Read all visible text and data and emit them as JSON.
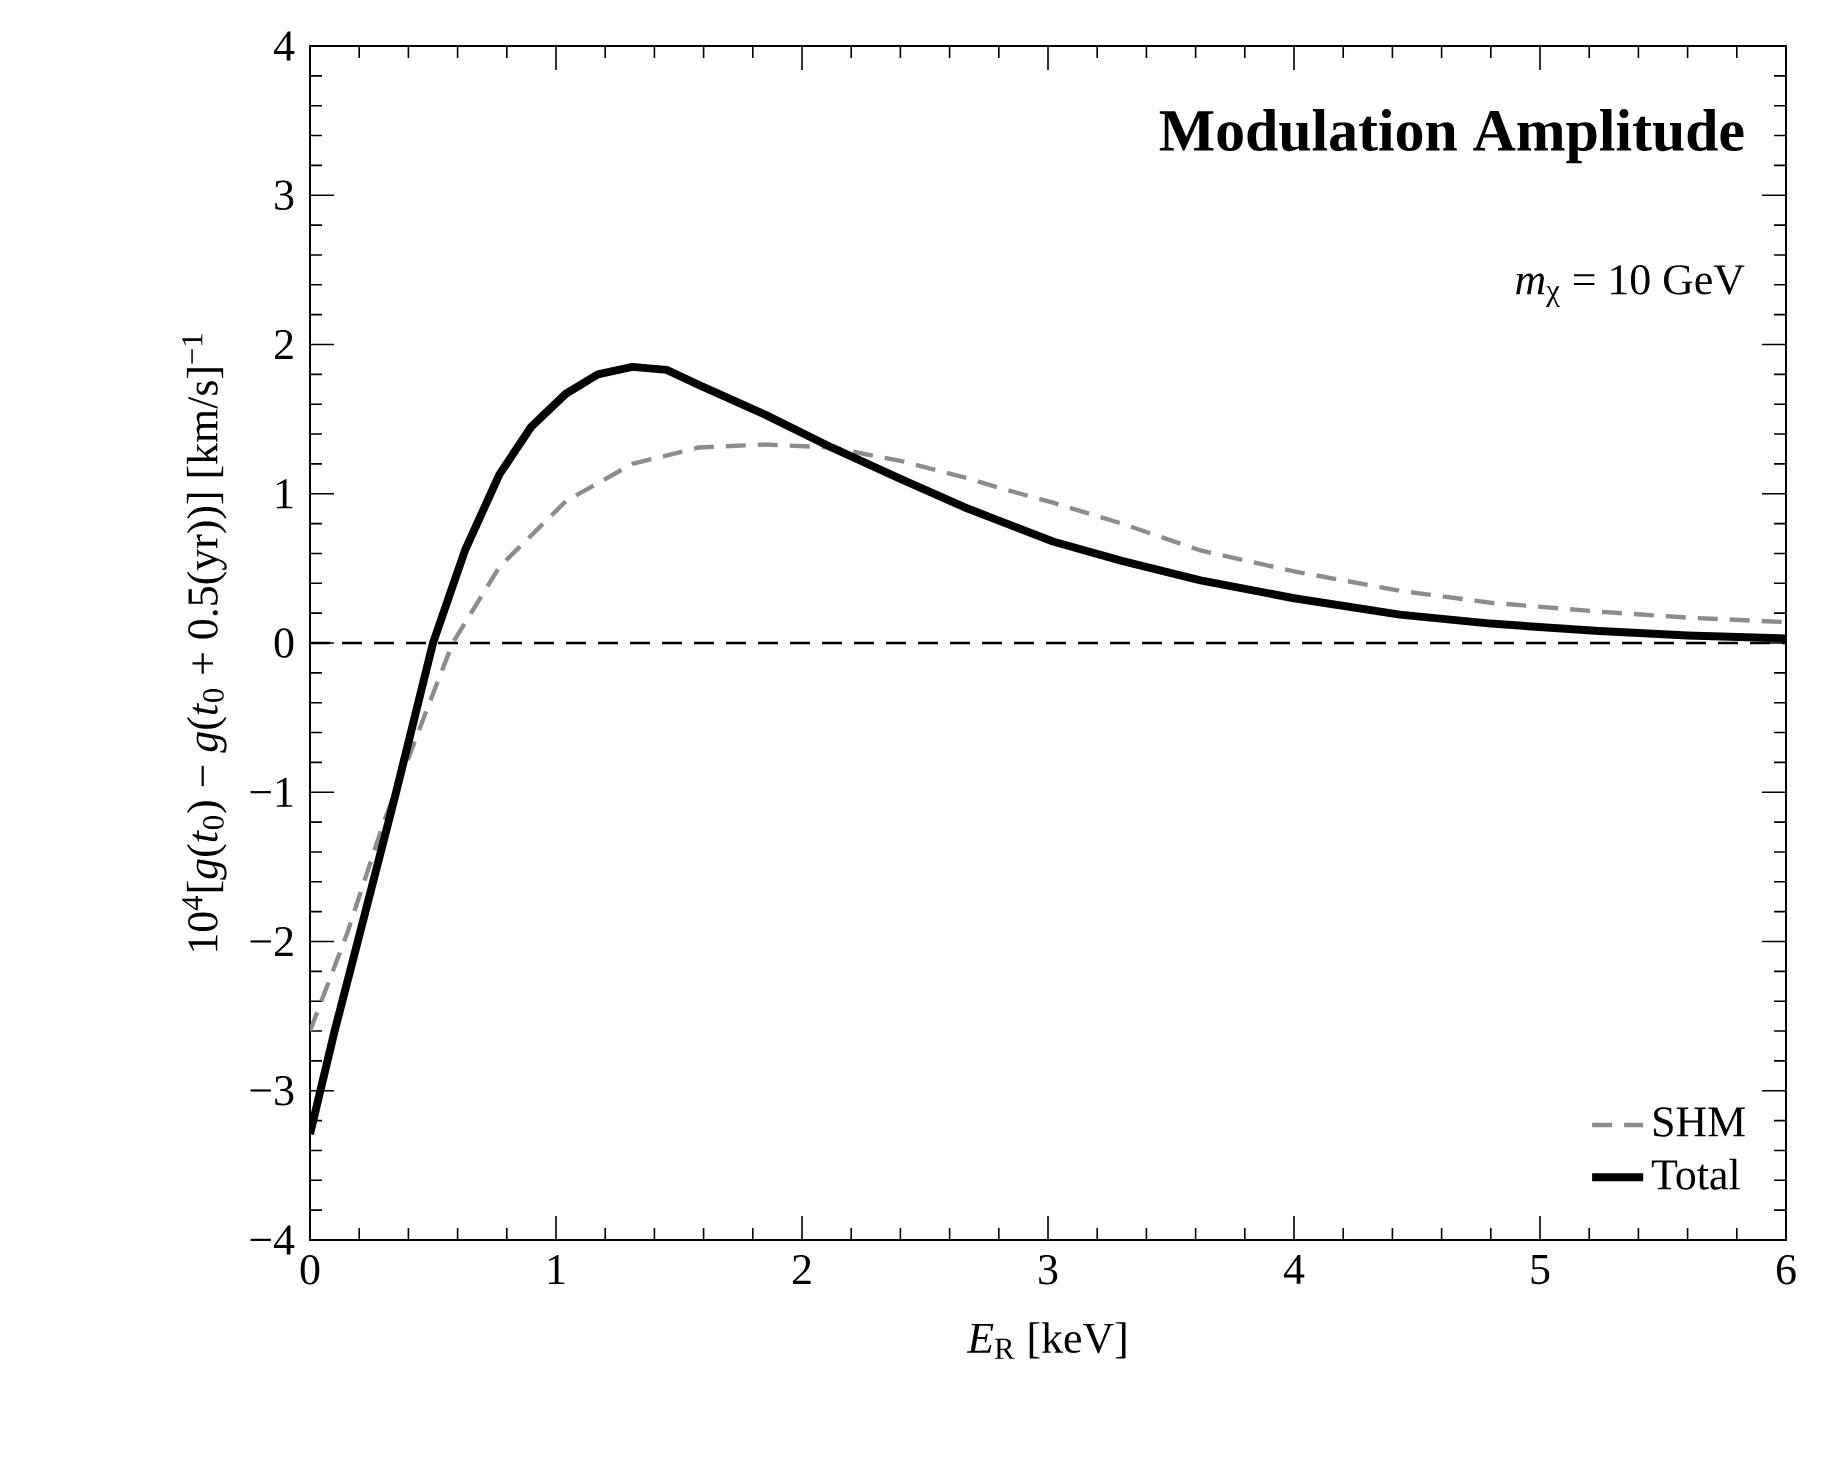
{
  "chart_data": {
    "type": "line",
    "title": "Modulation Amplitude",
    "xlabel": "*E*$_{R}$ [keV]",
    "ylabel": "10$^{4}$[*g*(*t*$_{0}$) − *g*(*t*$_{0}$ + 0.5(yr))] [km/s]$^{−1}$",
    "annotations": [
      "*m*$_{χ}$ = 10 GeV"
    ],
    "xlim": [
      0,
      6
    ],
    "ylim": [
      -4,
      4
    ],
    "xticks": [
      0,
      1,
      2,
      3,
      4,
      5,
      6
    ],
    "yticks": [
      {
        "value": -4,
        "label": "−4"
      },
      {
        "value": -3,
        "label": "−3"
      },
      {
        "value": -2,
        "label": "−2"
      },
      {
        "value": -1,
        "label": "−1"
      },
      0,
      1,
      2,
      3,
      4
    ],
    "ref_lines": [
      {
        "axis": "y",
        "value": 0,
        "color": "#000000",
        "line_style": "dashed"
      }
    ],
    "legend": "bottom right",
    "grid": false,
    "marker": "none",
    "series": [
      {
        "name": "SHM",
        "color": "#8c8c8c",
        "line_style": "dashed",
        "x": [
          0,
          0.15,
          0.3,
          0.5,
          0.58,
          0.77,
          1.04,
          1.31,
          1.58,
          1.85,
          2.12,
          2.4,
          2.66,
          2.8,
          3.02,
          3.3,
          3.62,
          4.0,
          4.43,
          4.8,
          5.24,
          5.6,
          6.0
        ],
        "values": [
          -2.6,
          -1.95,
          -1.2,
          -0.34,
          0,
          0.51,
          0.95,
          1.2,
          1.31,
          1.33,
          1.31,
          1.22,
          1.11,
          1.04,
          0.94,
          0.8,
          0.62,
          0.48,
          0.35,
          0.27,
          0.21,
          0.17,
          0.14
        ]
      },
      {
        "name": "Total",
        "color": "#000000",
        "line_style": "solid",
        "x": [
          0,
          0.1,
          0.23,
          0.35,
          0.5,
          0.63,
          0.77,
          0.9,
          1.04,
          1.17,
          1.31,
          1.45,
          1.58,
          1.85,
          2.12,
          2.4,
          2.66,
          2.8,
          3.02,
          3.3,
          3.62,
          4.0,
          4.43,
          4.8,
          5.24,
          5.6,
          6.0
        ],
        "values": [
          -3.29,
          -2.6,
          -1.77,
          -1.0,
          0,
          0.62,
          1.13,
          1.45,
          1.67,
          1.8,
          1.85,
          1.83,
          1.73,
          1.53,
          1.31,
          1.1,
          0.91,
          0.82,
          0.68,
          0.55,
          0.42,
          0.3,
          0.19,
          0.13,
          0.08,
          0.05,
          0.03
        ]
      }
    ]
  }
}
